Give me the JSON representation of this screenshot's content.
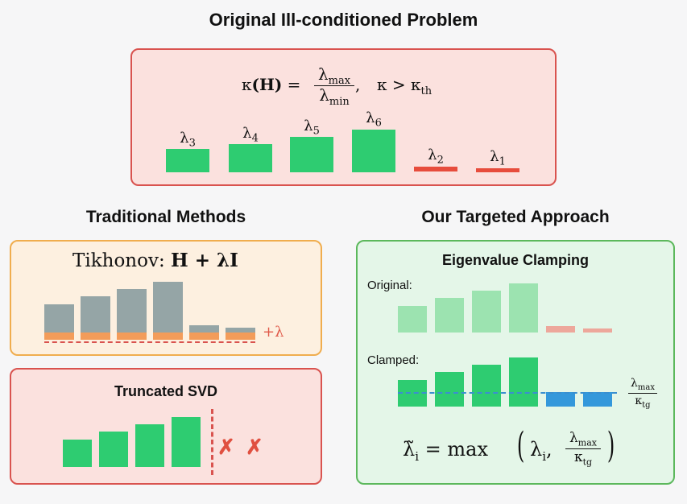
{
  "title": "Original Ill-conditioned Problem",
  "top_panel": {
    "formula": {
      "kappa": "κ",
      "arg": "(H)",
      "eq": " = ",
      "num": "λ",
      "num_sub": "max",
      "den": "λ",
      "den_sub": "min",
      "tail": ",",
      "cond": "κ > κ",
      "cond_sub": "th"
    },
    "eigen_labels": [
      {
        "name": "λ",
        "sub": "3"
      },
      {
        "name": "λ",
        "sub": "4"
      },
      {
        "name": "λ",
        "sub": "5"
      },
      {
        "name": "λ",
        "sub": "6"
      },
      {
        "name": "λ",
        "sub": "2"
      },
      {
        "name": "λ",
        "sub": "1"
      }
    ]
  },
  "traditional": {
    "heading": "Traditional Methods",
    "tikhonov": {
      "label": "Tikhonov:",
      "expr": "H + λI",
      "add_label": "+λ"
    },
    "tsvd": {
      "heading": "Truncated SVD",
      "marks": [
        "✗",
        "✗"
      ]
    }
  },
  "targeted": {
    "heading": "Our Targeted Approach",
    "subheading": "Eigenvalue Clamping",
    "original_label": "Original:",
    "clamped_label": "Clamped:",
    "threshold_num": "λ",
    "threshold_num_sub": "max",
    "threshold_den": "κ",
    "threshold_den_sub": "tg",
    "formula": {
      "lhs": "λ̃",
      "lhs_sub": "i",
      "eq": " = max",
      "arg": "λ",
      "arg_sub": "i",
      "frac_num": "λ",
      "frac_num_sub": "max",
      "frac_den": "κ",
      "frac_den_sub": "tg"
    }
  },
  "colors": {
    "green": "#2ecc71",
    "red": "#e74c3c",
    "grey": "#95a5a6",
    "orange": "#f39c5a",
    "blue": "#3498db",
    "panel_red_bg": "#fbe1de",
    "panel_red_border": "#d9534f",
    "panel_orange_bg": "#fdf0e0",
    "panel_orange_border": "#f0ad4e",
    "panel_green_bg": "#e4f6e8",
    "panel_green_border": "#5cb85c"
  }
}
